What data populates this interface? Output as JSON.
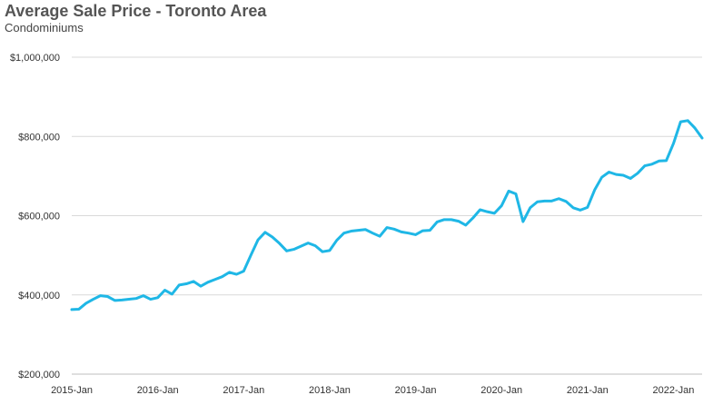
{
  "chart_data": {
    "type": "line",
    "title": "Average Sale Price - Toronto Area",
    "subtitle": "Condominiums",
    "y_tick_labels": [
      "$200,000",
      "$400,000",
      "$600,000",
      "$800,000",
      "$1,000,000"
    ],
    "y_tick_values": [
      200000,
      400000,
      600000,
      800000,
      1000000
    ],
    "x_tick_labels": [
      "2015-Jan",
      "2016-Jan",
      "2017-Jan",
      "2018-Jan",
      "2019-Jan",
      "2020-Jan",
      "2021-Jan",
      "2022-Jan"
    ],
    "ylim": [
      200000,
      1000000
    ],
    "grid": true,
    "line_color": "#1fb7e6",
    "series": [
      {
        "values": [
          363000,
          364000,
          379000,
          389000,
          398000,
          396000,
          386000,
          387000,
          389000,
          391000,
          398000,
          389000,
          393000,
          412000,
          402000,
          425000,
          428000,
          434000,
          422000,
          432000,
          439000,
          446000,
          457000,
          452000,
          460000,
          500000,
          539000,
          558000,
          546000,
          530000,
          511000,
          515000,
          523000,
          531000,
          524000,
          509000,
          512000,
          538000,
          556000,
          561000,
          563000,
          565000,
          556000,
          548000,
          570000,
          566000,
          559000,
          556000,
          552000,
          562000,
          563000,
          584000,
          590000,
          590000,
          586000,
          576000,
          594000,
          615000,
          610000,
          606000,
          625000,
          662000,
          655000,
          585000,
          620000,
          635000,
          637000,
          637000,
          643000,
          636000,
          620000,
          614000,
          621000,
          665000,
          697000,
          710000,
          704000,
          702000,
          694000,
          707000,
          726000,
          730000,
          738000,
          739000,
          782000,
          837000,
          840000,
          821000,
          796000
        ]
      }
    ]
  }
}
